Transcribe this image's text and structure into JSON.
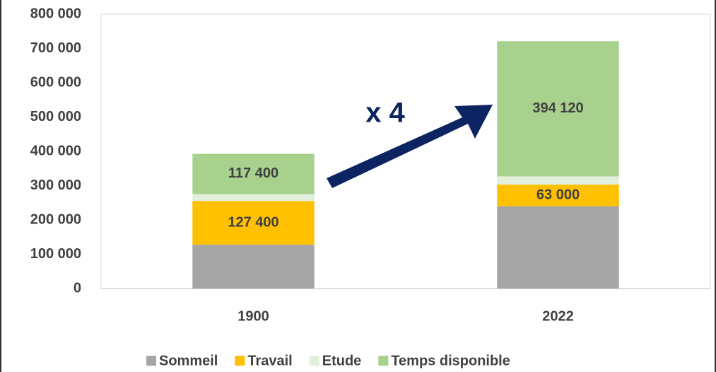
{
  "chart_data": {
    "type": "bar",
    "stacked": true,
    "categories": [
      "1900",
      "2022"
    ],
    "series": [
      {
        "name": "Sommeil",
        "color": "#a5a5a5",
        "values": [
          128000,
          240000
        ]
      },
      {
        "name": "Travail",
        "color": "#ffc000",
        "values": [
          127400,
          63000
        ],
        "value_labels": [
          "127 400",
          "63 000"
        ]
      },
      {
        "name": "Etude",
        "color": "#e2efda",
        "values": [
          20000,
          24000
        ]
      },
      {
        "name": "Temps disponible",
        "color": "#a9d18e",
        "values": [
          117400,
          394120
        ],
        "value_labels": [
          "117 400",
          "394 120"
        ]
      }
    ],
    "ylim": [
      0,
      800000
    ],
    "yticks": [
      0,
      {
        "value": 100000,
        "label": "100 000"
      },
      {
        "value": 200000,
        "label": "200 000"
      },
      {
        "value": 300000,
        "label": "300 000"
      },
      {
        "value": 400000,
        "label": "400 000"
      },
      {
        "value": 500000,
        "label": "500 000"
      },
      {
        "value": 600000,
        "label": "600 000"
      },
      {
        "value": 700000,
        "label": "700 000"
      },
      {
        "value": 800000,
        "label": "800 000"
      }
    ],
    "grid": false,
    "legend": "bottom",
    "annotation": "x 4"
  }
}
